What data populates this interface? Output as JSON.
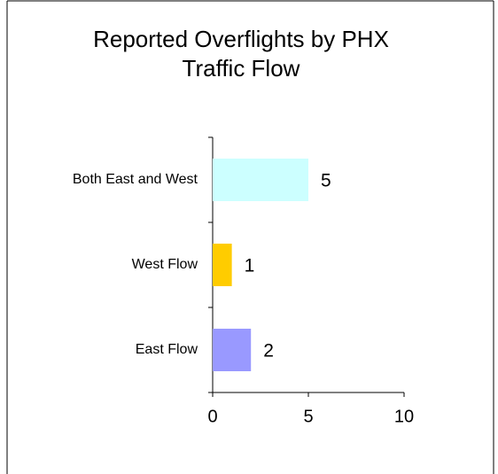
{
  "chart_data": {
    "type": "hbar",
    "title": "Reported Overflights by PHX Traffic Flow",
    "categories": [
      "Both East and West",
      "West Flow",
      "East Flow"
    ],
    "values": [
      5,
      1,
      2
    ],
    "colors": [
      "#ccffff",
      "#ffcc00",
      "#9999ff"
    ],
    "xlim": [
      0,
      10
    ],
    "xticks": [
      0,
      5,
      10
    ]
  }
}
